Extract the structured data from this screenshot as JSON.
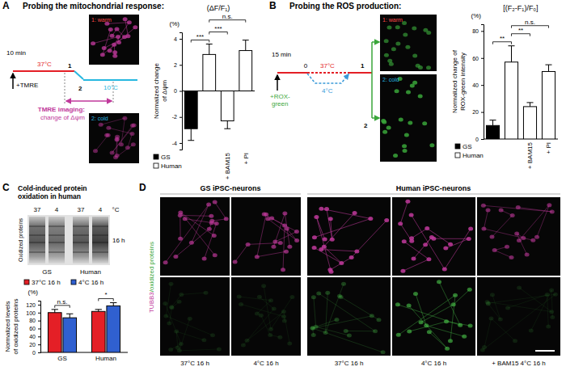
{
  "figure": {
    "A": {
      "label": "A",
      "title": "Probing the mitochondrial response:",
      "time": "10 min",
      "reagent": "+TMRE",
      "warm": "37°C",
      "cold": "10°C",
      "steps": [
        "1",
        "2"
      ],
      "imaging": [
        "TMRE imaging:",
        "change of Δψm"
      ],
      "images": [
        "1: warm",
        "2: cold"
      ]
    },
    "B": {
      "label": "B",
      "title": "Probing the ROS production:",
      "time": "15 min",
      "reagent": [
        "+ROX-",
        "green"
      ],
      "warm": "37°C",
      "cold": "4°C",
      "steps": [
        "0",
        "1",
        "2"
      ],
      "images": [
        "1: warm",
        "2: cold"
      ]
    },
    "C": {
      "label": "C",
      "title": [
        "Cold-induced protein",
        "oxidation in human"
      ],
      "blot": {
        "temps": [
          "37",
          "4",
          "37",
          "4",
          "°C"
        ],
        "ylabel": "Oxidized proteins",
        "time": "16 h",
        "groups": [
          "GS",
          "Human"
        ]
      }
    },
    "D": {
      "label": "D",
      "groups": [
        "GS iPSC-neurons",
        "Human iPSC-neurons"
      ],
      "stain": [
        "TUBB3",
        "/oxidized proteins"
      ],
      "columns": [
        "37°C 16 h",
        "4°C 16 h",
        "37°C 16 h",
        "4°C 16 h",
        "+ BAM15 4°C 16 h"
      ]
    }
  },
  "chart_data": [
    {
      "type": "bar",
      "title": "(ΔF/F₁)",
      "y_unit": "(%)",
      "y_label": [
        "Normalized change",
        "of Δψm"
      ],
      "categories": [
        null,
        null,
        "+ BAM15",
        "+ PI"
      ],
      "series": [
        {
          "name": "GS",
          "color": "#000000",
          "values": [
            -2.9,
            null,
            null,
            null
          ],
          "errors": [
            0.9,
            null,
            null,
            null
          ]
        },
        {
          "name": "Human",
          "color": "#ffffff",
          "values": [
            null,
            2.8,
            -2.3,
            3.1
          ],
          "errors": [
            null,
            0.8,
            0.6,
            0.8
          ]
        }
      ],
      "ylim": [
        -4.5,
        4.5
      ],
      "yticks": [
        -4,
        -2,
        0,
        2,
        4
      ],
      "legend": "bottom-left",
      "annotations": [
        {
          "text": "***",
          "categories": [
            0,
            1
          ]
        },
        {
          "text": "***",
          "categories": [
            1,
            2
          ]
        },
        {
          "text": "n.s.",
          "categories": [
            1,
            3
          ]
        }
      ]
    },
    {
      "type": "bar",
      "title": "[(F₂-F₁)/F₀]",
      "y_unit": "(%)",
      "y_label": [
        "Normalized change of",
        "ROX-green intensity"
      ],
      "categories": [
        null,
        null,
        "+ BAM15",
        "+ PI"
      ],
      "series": [
        {
          "name": "GS",
          "color": "#000000",
          "values": [
            10,
            null,
            null,
            null
          ],
          "errors": [
            4,
            null,
            null,
            null
          ]
        },
        {
          "name": "Human",
          "color": "#ffffff",
          "values": [
            null,
            57,
            24,
            50
          ],
          "errors": [
            null,
            12,
            3,
            5
          ]
        }
      ],
      "ylim": [
        0,
        85
      ],
      "yticks": [
        0,
        20,
        40,
        60,
        80
      ],
      "legend": "bottom-left",
      "annotations": [
        {
          "text": "**",
          "categories": [
            0,
            1
          ]
        },
        {
          "text": "**",
          "categories": [
            1,
            2
          ]
        },
        {
          "text": "n.s.",
          "categories": [
            1,
            3
          ]
        }
      ]
    },
    {
      "type": "bar",
      "y_unit": "(%)",
      "y_label": [
        "Normalized levels",
        "of oxidized proteins"
      ],
      "categories": [
        "GS",
        "Human"
      ],
      "series": [
        {
          "name": "37°C 16 h",
          "color": "#e41f26",
          "values": [
            100,
            103
          ],
          "errors": [
            8,
            5
          ]
        },
        {
          "name": "4°C 16 h",
          "color": "#3060d0",
          "values": [
            87,
            117
          ],
          "errors": [
            10,
            8
          ]
        }
      ],
      "ylim": [
        0,
        130
      ],
      "yticks": [
        0,
        20,
        40,
        60,
        80,
        100,
        120
      ],
      "legend": "top",
      "annotations": [
        {
          "text": "n.s.",
          "category": 0
        },
        {
          "text": "*",
          "category": 1
        }
      ]
    }
  ]
}
